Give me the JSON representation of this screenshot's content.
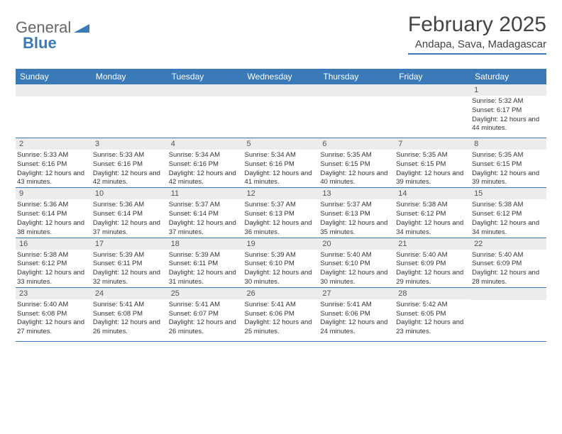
{
  "logo": {
    "general": "General",
    "blue": "Blue"
  },
  "title": "February 2025",
  "location": "Andapa, Sava, Madagascar",
  "colors": {
    "header_bg": "#3a7ab8",
    "header_text": "#ffffff",
    "daynum_bg": "#ececec",
    "border": "#3a7ab8",
    "text": "#333333"
  },
  "day_names": [
    "Sunday",
    "Monday",
    "Tuesday",
    "Wednesday",
    "Thursday",
    "Friday",
    "Saturday"
  ],
  "weeks": [
    [
      null,
      null,
      null,
      null,
      null,
      null,
      {
        "n": "1",
        "sr": "5:32 AM",
        "ss": "6:17 PM",
        "dl": "12 hours and 44 minutes."
      }
    ],
    [
      {
        "n": "2",
        "sr": "5:33 AM",
        "ss": "6:16 PM",
        "dl": "12 hours and 43 minutes."
      },
      {
        "n": "3",
        "sr": "5:33 AM",
        "ss": "6:16 PM",
        "dl": "12 hours and 42 minutes."
      },
      {
        "n": "4",
        "sr": "5:34 AM",
        "ss": "6:16 PM",
        "dl": "12 hours and 42 minutes."
      },
      {
        "n": "5",
        "sr": "5:34 AM",
        "ss": "6:16 PM",
        "dl": "12 hours and 41 minutes."
      },
      {
        "n": "6",
        "sr": "5:35 AM",
        "ss": "6:15 PM",
        "dl": "12 hours and 40 minutes."
      },
      {
        "n": "7",
        "sr": "5:35 AM",
        "ss": "6:15 PM",
        "dl": "12 hours and 39 minutes."
      },
      {
        "n": "8",
        "sr": "5:35 AM",
        "ss": "6:15 PM",
        "dl": "12 hours and 39 minutes."
      }
    ],
    [
      {
        "n": "9",
        "sr": "5:36 AM",
        "ss": "6:14 PM",
        "dl": "12 hours and 38 minutes."
      },
      {
        "n": "10",
        "sr": "5:36 AM",
        "ss": "6:14 PM",
        "dl": "12 hours and 37 minutes."
      },
      {
        "n": "11",
        "sr": "5:37 AM",
        "ss": "6:14 PM",
        "dl": "12 hours and 37 minutes."
      },
      {
        "n": "12",
        "sr": "5:37 AM",
        "ss": "6:13 PM",
        "dl": "12 hours and 36 minutes."
      },
      {
        "n": "13",
        "sr": "5:37 AM",
        "ss": "6:13 PM",
        "dl": "12 hours and 35 minutes."
      },
      {
        "n": "14",
        "sr": "5:38 AM",
        "ss": "6:12 PM",
        "dl": "12 hours and 34 minutes."
      },
      {
        "n": "15",
        "sr": "5:38 AM",
        "ss": "6:12 PM",
        "dl": "12 hours and 34 minutes."
      }
    ],
    [
      {
        "n": "16",
        "sr": "5:38 AM",
        "ss": "6:12 PM",
        "dl": "12 hours and 33 minutes."
      },
      {
        "n": "17",
        "sr": "5:39 AM",
        "ss": "6:11 PM",
        "dl": "12 hours and 32 minutes."
      },
      {
        "n": "18",
        "sr": "5:39 AM",
        "ss": "6:11 PM",
        "dl": "12 hours and 31 minutes."
      },
      {
        "n": "19",
        "sr": "5:39 AM",
        "ss": "6:10 PM",
        "dl": "12 hours and 30 minutes."
      },
      {
        "n": "20",
        "sr": "5:40 AM",
        "ss": "6:10 PM",
        "dl": "12 hours and 30 minutes."
      },
      {
        "n": "21",
        "sr": "5:40 AM",
        "ss": "6:09 PM",
        "dl": "12 hours and 29 minutes."
      },
      {
        "n": "22",
        "sr": "5:40 AM",
        "ss": "6:09 PM",
        "dl": "12 hours and 28 minutes."
      }
    ],
    [
      {
        "n": "23",
        "sr": "5:40 AM",
        "ss": "6:08 PM",
        "dl": "12 hours and 27 minutes."
      },
      {
        "n": "24",
        "sr": "5:41 AM",
        "ss": "6:08 PM",
        "dl": "12 hours and 26 minutes."
      },
      {
        "n": "25",
        "sr": "5:41 AM",
        "ss": "6:07 PM",
        "dl": "12 hours and 26 minutes."
      },
      {
        "n": "26",
        "sr": "5:41 AM",
        "ss": "6:06 PM",
        "dl": "12 hours and 25 minutes."
      },
      {
        "n": "27",
        "sr": "5:41 AM",
        "ss": "6:06 PM",
        "dl": "12 hours and 24 minutes."
      },
      {
        "n": "28",
        "sr": "5:42 AM",
        "ss": "6:05 PM",
        "dl": "12 hours and 23 minutes."
      },
      null
    ]
  ],
  "labels": {
    "sunrise": "Sunrise:",
    "sunset": "Sunset:",
    "daylight": "Daylight:"
  }
}
